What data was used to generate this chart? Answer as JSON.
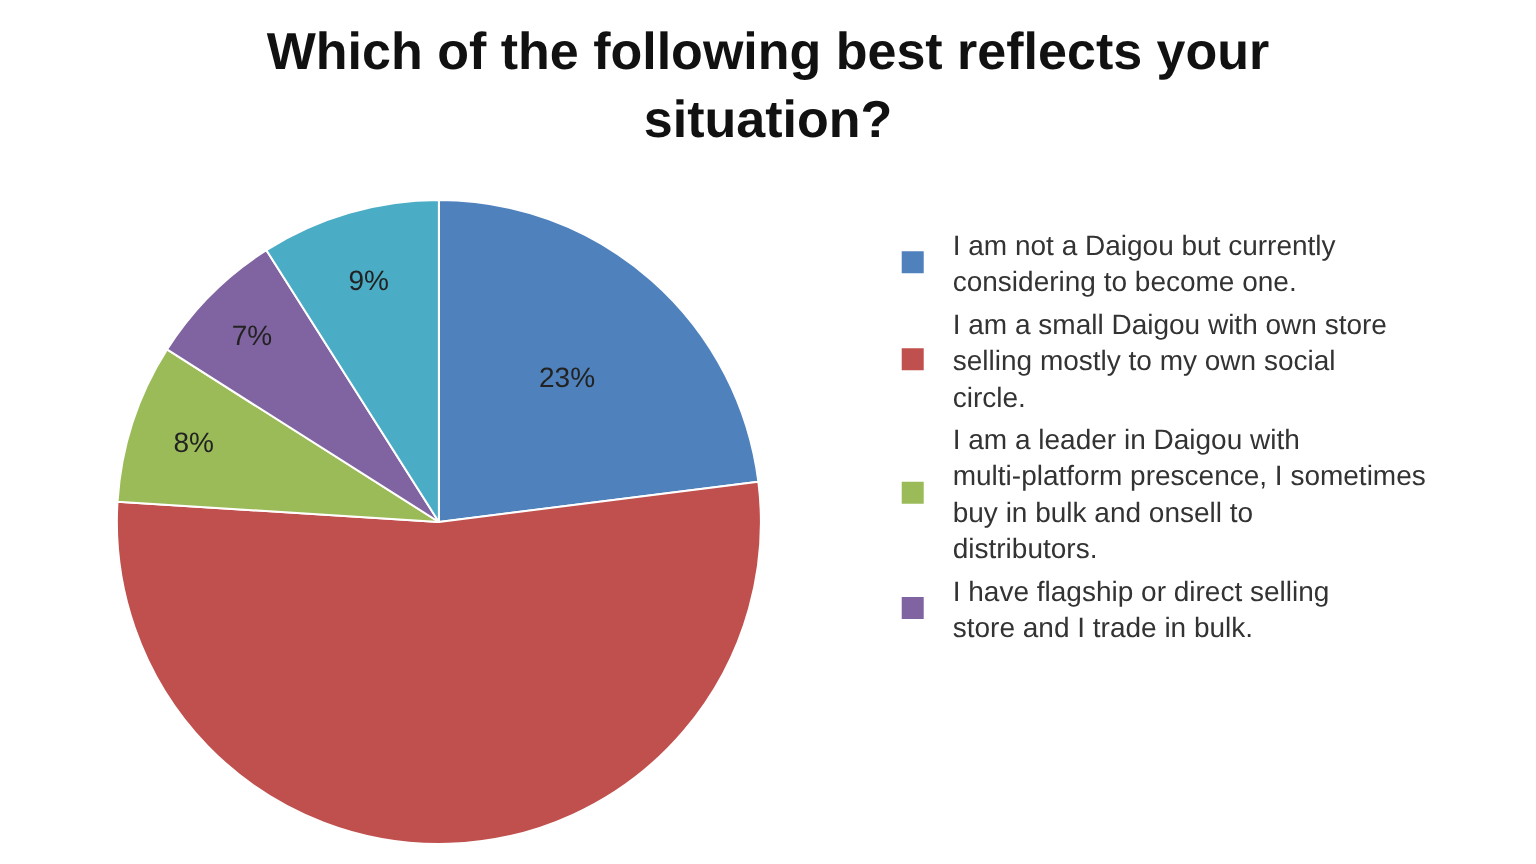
{
  "chart_data": {
    "type": "pie",
    "title": "Which of the following best reflects your situation?",
    "categories": [
      "I am not a Daigou but currently considering to become one.",
      "I am a small Daigou with own store selling mostly to my own social circle.",
      "I am a leader in Daigou with multi-platform prescence, I sometimes buy in bulk and onsell to distributors.",
      "I have flagship or direct selling store and I trade in bulk.",
      null
    ],
    "values": [
      23,
      53,
      8,
      7,
      9
    ],
    "colors": [
      "#4f81bd",
      "#c0504d",
      "#9bbb59",
      "#8064a2",
      "#4bacc6"
    ],
    "value_labels": [
      "23%",
      null,
      "8%",
      "7%",
      "9%"
    ],
    "legend": "right"
  }
}
